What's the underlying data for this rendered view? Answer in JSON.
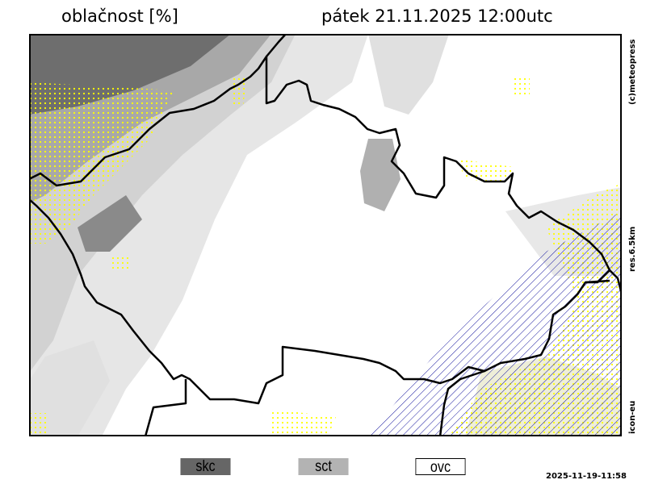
{
  "header": {
    "title": "oblačnost [%]",
    "datetime": "pátek 21.11.2025 12:00utc"
  },
  "side_labels": {
    "copyright": "(c)meteopress",
    "resolution": "res.6.5km",
    "model": "icon-eu"
  },
  "legend": [
    {
      "label": "skc",
      "color": "#666666"
    },
    {
      "label": "sct",
      "color": "#b3b3b3"
    },
    {
      "label": "ovc",
      "color": "#ffffff"
    }
  ],
  "timestamp": "2025-11-19-11:58",
  "colors": {
    "dots": "#ffff00",
    "hatch": "#1a1aa0",
    "border": "#000000"
  }
}
